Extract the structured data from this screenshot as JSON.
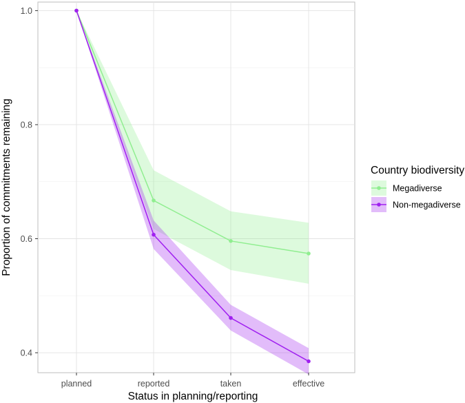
{
  "chart_data": {
    "type": "line",
    "title": "",
    "xlabel": "Status in planning/reporting",
    "ylabel": "Proportion of commitments remaining",
    "categories": [
      "planned",
      "reported",
      "taken",
      "effective"
    ],
    "ylim": [
      0.365,
      1.015
    ],
    "yticks": [
      0.4,
      0.6,
      0.8,
      1.0
    ],
    "ytick_labels": [
      "0.4",
      "0.6",
      "0.8",
      "1.0"
    ],
    "grid": true,
    "legend": {
      "title": "Country biodiversity",
      "placement": "right"
    },
    "series": [
      {
        "name": "Megadiverse",
        "color": "#90ee90",
        "values": [
          1.0,
          0.667,
          0.596,
          0.574
        ],
        "lower": [
          1.0,
          0.617,
          0.545,
          0.521
        ],
        "upper": [
          1.0,
          0.72,
          0.648,
          0.628
        ]
      },
      {
        "name": "Non-megadiverse",
        "color": "#a020f0",
        "values": [
          1.0,
          0.607,
          0.461,
          0.385
        ],
        "lower": [
          1.0,
          0.582,
          0.439,
          0.362
        ],
        "upper": [
          1.0,
          0.632,
          0.484,
          0.408
        ]
      }
    ]
  }
}
